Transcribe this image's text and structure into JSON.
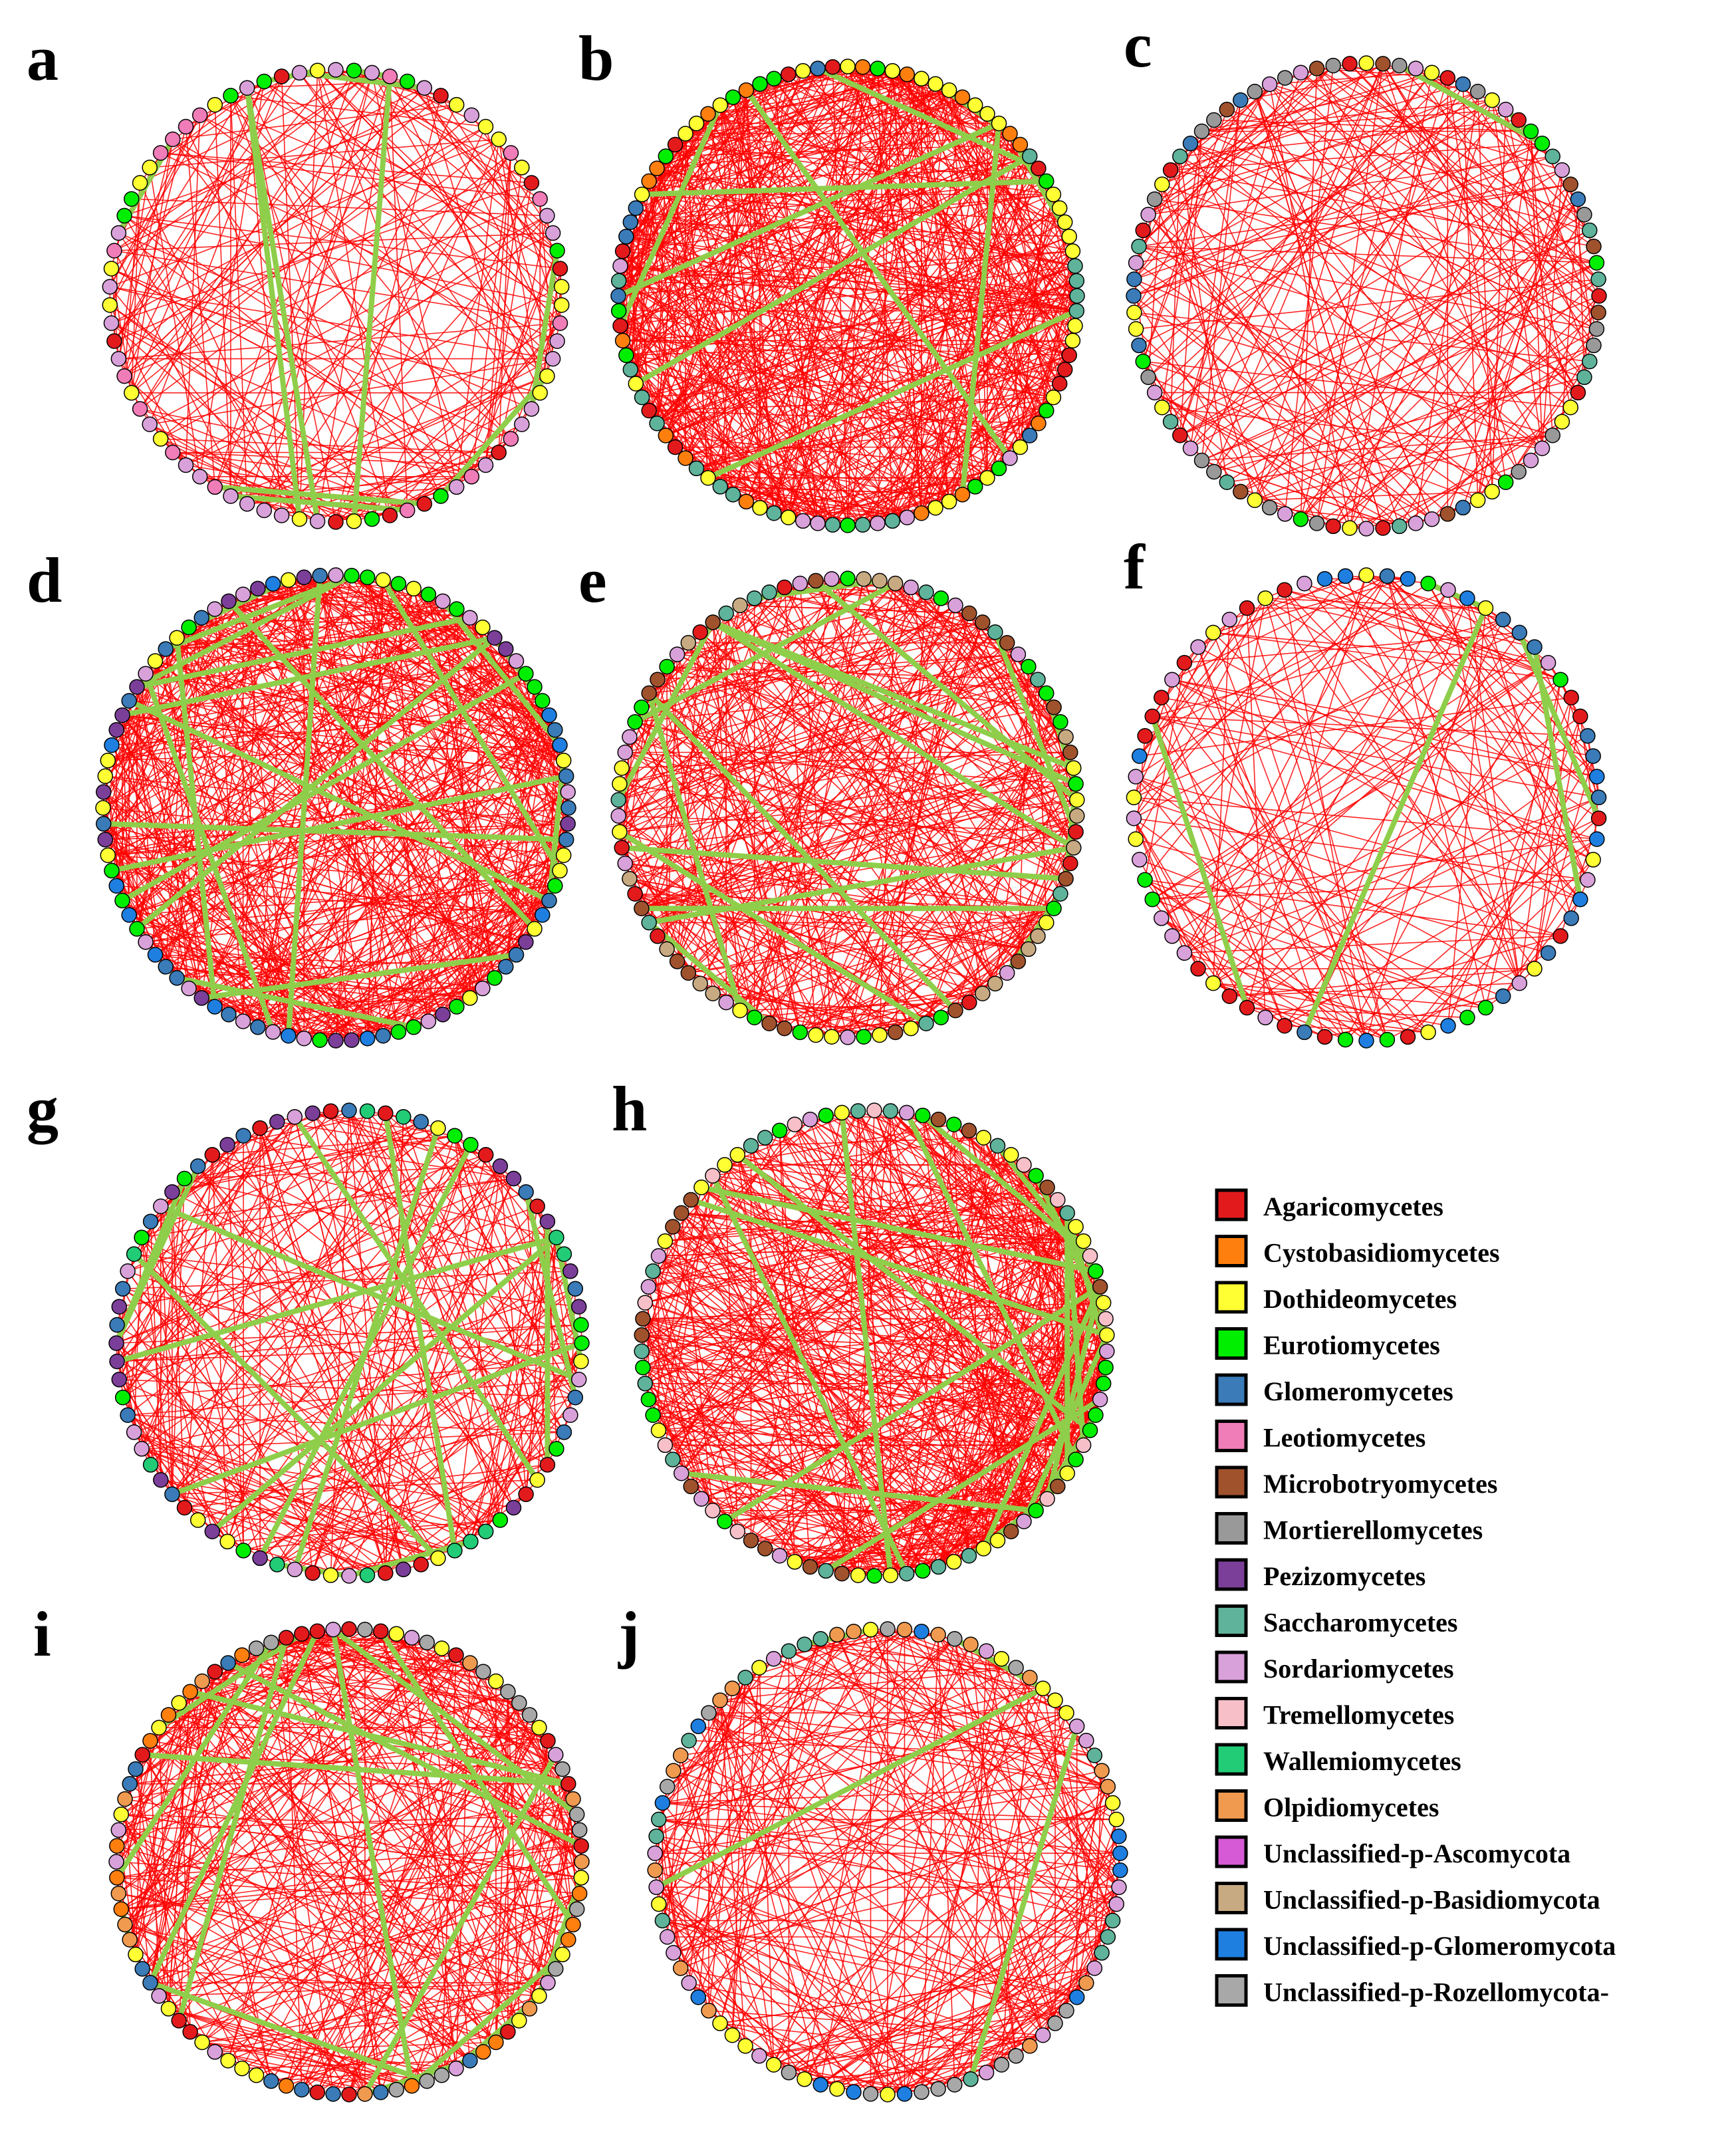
{
  "colors": {
    "positive_edge": "#ff0000",
    "negative_edge": "#8fce4a",
    "node_border": "#000000"
  },
  "panels": [
    {
      "letter": "a",
      "node_classes": [
        "Sordariomycetes",
        "Agaricomycetes",
        "Dothideomycetes",
        "Sordariomycetes",
        "Eurotiomycetes",
        "Dothideomycetes",
        "Agaricomycetes",
        "Sordariomycetes",
        "Leotiomycetes"
      ]
    },
    {
      "letter": "b",
      "node_classes": [
        "Dothideomycetes",
        "Glomeromycetes",
        "Agaricomycetes",
        "Eurotiomycetes",
        "Sordariomycetes",
        "Saccharomycetes",
        "Cystobasidiomycetes",
        "Dothideomycetes"
      ]
    },
    {
      "letter": "c",
      "node_classes": [
        "Sordariomycetes",
        "Agaricomycetes",
        "Dothideomycetes",
        "Eurotiomycetes",
        "Glomeromycetes",
        "Mortierellomycetes",
        "Microbotryomycetes",
        "Saccharomycetes"
      ]
    },
    {
      "letter": "d",
      "node_classes": [
        "Dothideomycetes",
        "Glomeromycetes",
        "Sordariomycetes",
        "Eurotiomycetes",
        "Unclassified-p-Glomeromycota",
        "Pezizomycetes"
      ]
    },
    {
      "letter": "e",
      "node_classes": [
        "Dothideomycetes",
        "Sordariomycetes",
        "Agaricomycetes",
        "Microbotryomycetes",
        "Saccharomycetes",
        "Unclassified-p-Basidiomycota",
        "Eurotiomycetes"
      ]
    },
    {
      "letter": "f",
      "node_classes": [
        "Sordariomycetes",
        "Dothideomycetes",
        "Agaricomycetes",
        "Eurotiomycetes",
        "Glomeromycetes",
        "Unclassified-p-Glomeromycota"
      ]
    },
    {
      "letter": "g",
      "node_classes": [
        "Sordariomycetes",
        "Glomeromycetes",
        "Dothideomycetes",
        "Agaricomycetes",
        "Eurotiomycetes",
        "Wallemiomycetes",
        "Pezizomycetes"
      ]
    },
    {
      "letter": "h",
      "node_classes": [
        "Dothideomycetes",
        "Sordariomycetes",
        "Microbotryomycetes",
        "Eurotiomycetes",
        "Saccharomycetes",
        "Tremellomycetes"
      ]
    },
    {
      "letter": "i",
      "node_classes": [
        "Olpidiomycetes",
        "Unclassified-p-Rozellomycota-",
        "Dothideomycetes",
        "Agaricomycetes",
        "Glomeromycetes",
        "Cystobasidiomycetes",
        "Sordariomycetes"
      ]
    },
    {
      "letter": "j",
      "node_classes": [
        "Saccharomycetes",
        "Dothideomycetes",
        "Unclassified-p-Glomeromycota",
        "Sordariomycetes",
        "Unclassified-p-Rozellomycota-",
        "Olpidiomycetes"
      ]
    }
  ],
  "legend": [
    {
      "label": "Agaricomycetes",
      "color": "#e31a1c"
    },
    {
      "label": "Cystobasidiomycetes",
      "color": "#ff7f0e"
    },
    {
      "label": "Dothideomycetes",
      "color": "#ffff33"
    },
    {
      "label": "Eurotiomycetes",
      "color": "#00ee00"
    },
    {
      "label": "Glomeromycetes",
      "color": "#3a7bb8"
    },
    {
      "label": "Leotiomycetes",
      "color": "#f07cb8"
    },
    {
      "label": "Microbotryomycetes",
      "color": "#a0522d"
    },
    {
      "label": "Mortierellomycetes",
      "color": "#999999"
    },
    {
      "label": "Pezizomycetes",
      "color": "#7b3f99"
    },
    {
      "label": "Saccharomycetes",
      "color": "#5fb39a"
    },
    {
      "label": "Sordariomycetes",
      "color": "#d9a1d9"
    },
    {
      "label": "Tremellomycetes",
      "color": "#f7c0c8"
    },
    {
      "label": "Wallemiomycetes",
      "color": "#22cc77"
    },
    {
      "label": "Olpidiomycetes",
      "color": "#f09a50"
    },
    {
      "label": "Unclassified-p-Ascomycota",
      "color": "#d65ad6"
    },
    {
      "label": "Unclassified-p-Basidiomycota",
      "color": "#c8aa82"
    },
    {
      "label": "Unclassified-p-Glomeromycota",
      "color": "#1f7fe0"
    },
    {
      "label": "Unclassified-p-Rozellomycota-",
      "color": "#a8a8a8"
    }
  ]
}
